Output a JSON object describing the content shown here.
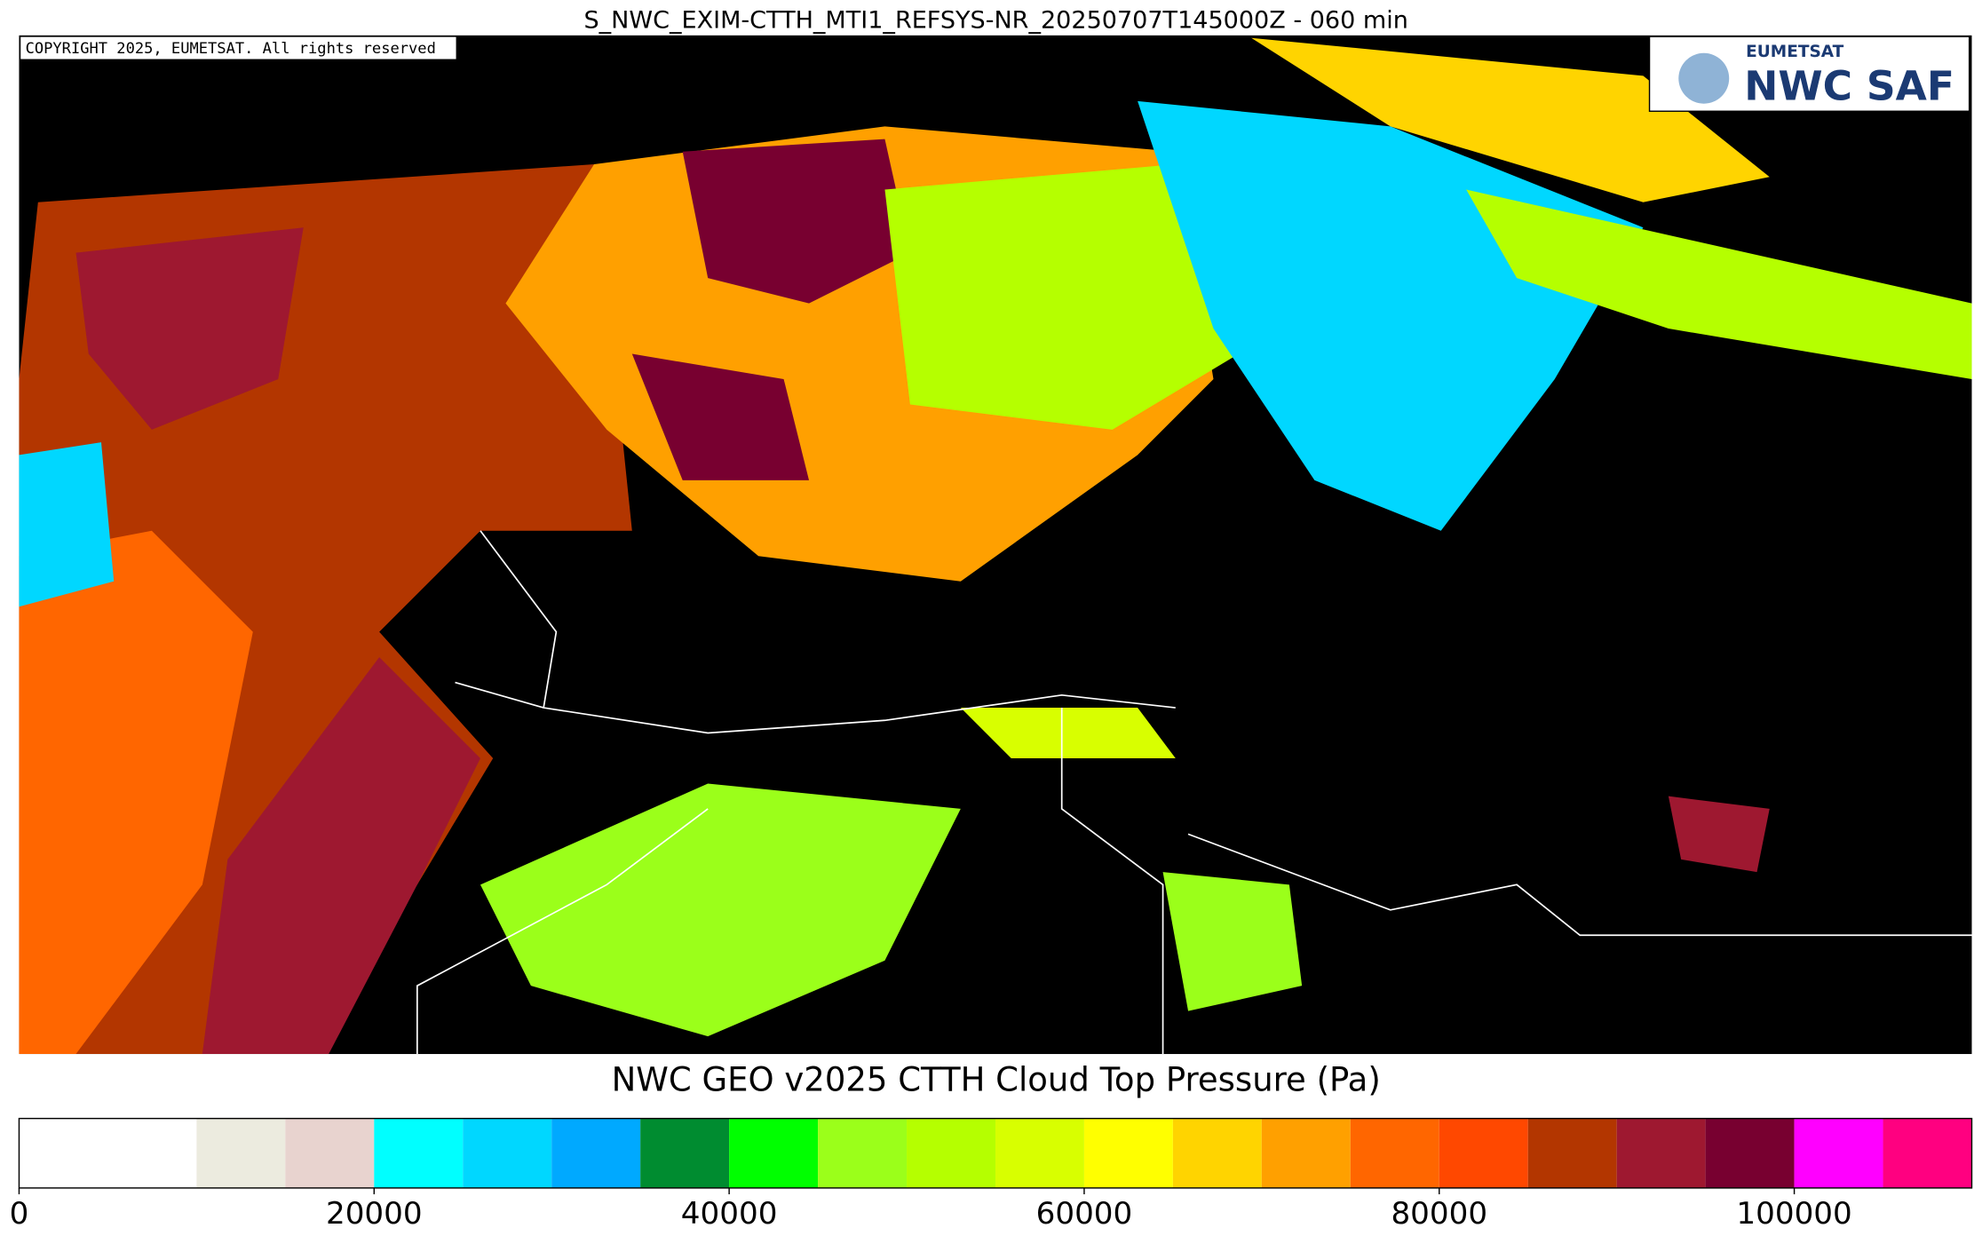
{
  "header": {
    "title": "S_NWC_EXIM-CTTH_MTI1_REFSYS-NR_20250707T145000Z - 060 min"
  },
  "map": {
    "copyright": "COPYRIGHT 2025, EUMETSAT. All rights reserved",
    "logo": {
      "top": "EUMETSAT",
      "bottom": "NWC SAF"
    }
  },
  "colorbar": {
    "title": "NWC GEO v2025 CTTH Cloud Top Pressure (Pa)",
    "bounds": [
      0,
      10000,
      15000,
      20000,
      25000,
      30000,
      35000,
      40000,
      45000,
      50000,
      55000,
      60000,
      65000,
      70000,
      75000,
      80000,
      85000,
      90000,
      95000,
      100000,
      105000,
      110000
    ],
    "colors": [
      "#ffffff",
      "#ecebdf",
      "#e8d3cf",
      "#00ffff",
      "#00d7ff",
      "#00a9ff",
      "#008c30",
      "#00ff00",
      "#9bff1a",
      "#b5ff00",
      "#d8ff00",
      "#ffff00",
      "#ffd400",
      "#ffa000",
      "#ff6600",
      "#ff4800",
      "#b33600",
      "#9e1830",
      "#780030",
      "#ff00ff",
      "#ff0080"
    ],
    "ticks": [
      0,
      20000,
      40000,
      60000,
      80000,
      100000
    ]
  }
}
